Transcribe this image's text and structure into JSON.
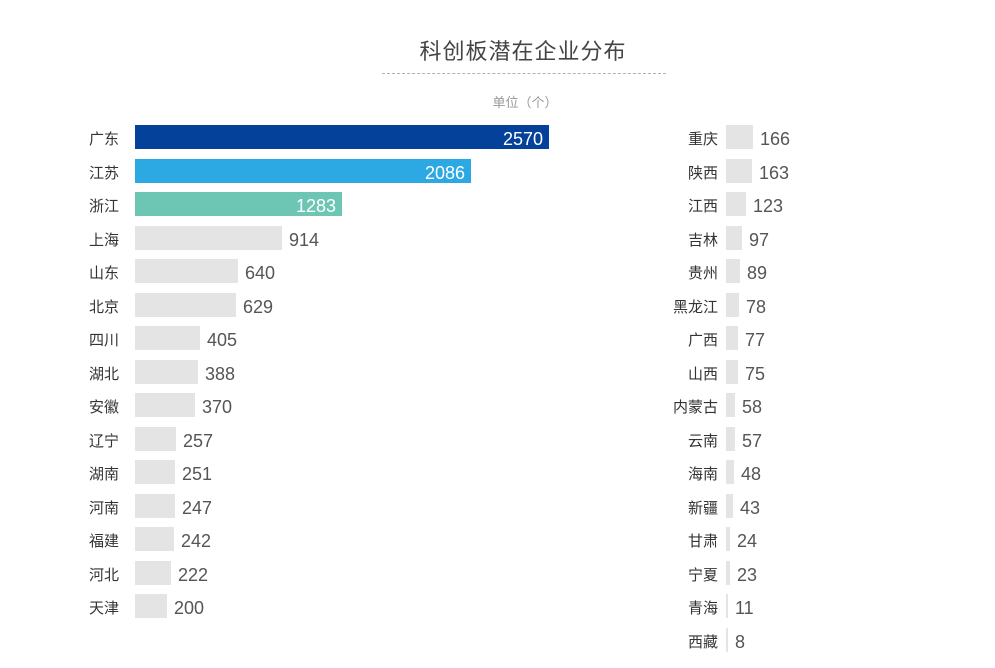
{
  "title": "科创板潜在企业分布",
  "unit": "单位（个）",
  "colors": {
    "first": "#03419a",
    "second": "#2ca8e3",
    "third": "#6cc6b3",
    "default": "#e4e4e4"
  },
  "chart_data": {
    "type": "bar",
    "orientation": "horizontal",
    "title": "科创板潜在企业分布",
    "subtitle": "单位（个）",
    "xlabel": "",
    "ylabel": "",
    "grid": false,
    "legend": null,
    "categories": [
      "广东",
      "江苏",
      "浙江",
      "上海",
      "山东",
      "北京",
      "四川",
      "湖北",
      "安徽",
      "辽宁",
      "湖南",
      "河南",
      "福建",
      "河北",
      "天津",
      "重庆",
      "陕西",
      "江西",
      "吉林",
      "贵州",
      "黑龙江",
      "广西",
      "山西",
      "内蒙古",
      "云南",
      "海南",
      "新疆",
      "甘肃",
      "宁夏",
      "青海",
      "西藏"
    ],
    "values": [
      2570,
      2086,
      1283,
      914,
      640,
      629,
      405,
      388,
      370,
      257,
      251,
      247,
      242,
      222,
      200,
      166,
      163,
      123,
      97,
      89,
      78,
      77,
      75,
      58,
      57,
      48,
      43,
      24,
      23,
      11,
      8
    ],
    "panels": [
      {
        "name": "left",
        "categories": [
          "广东",
          "江苏",
          "浙江",
          "上海",
          "山东",
          "北京",
          "四川",
          "湖北",
          "安徽",
          "辽宁",
          "湖南",
          "河南",
          "福建",
          "河北",
          "天津"
        ],
        "values": [
          2570,
          2086,
          1283,
          914,
          640,
          629,
          405,
          388,
          370,
          257,
          251,
          247,
          242,
          222,
          200
        ]
      },
      {
        "name": "right",
        "categories": [
          "重庆",
          "陕西",
          "江西",
          "吉林",
          "贵州",
          "黑龙江",
          "广西",
          "山西",
          "内蒙古",
          "云南",
          "海南",
          "新疆",
          "甘肃",
          "宁夏",
          "青海",
          "西藏"
        ],
        "values": [
          166,
          163,
          123,
          97,
          89,
          78,
          77,
          75,
          58,
          57,
          48,
          43,
          24,
          23,
          11,
          8
        ]
      }
    ]
  }
}
